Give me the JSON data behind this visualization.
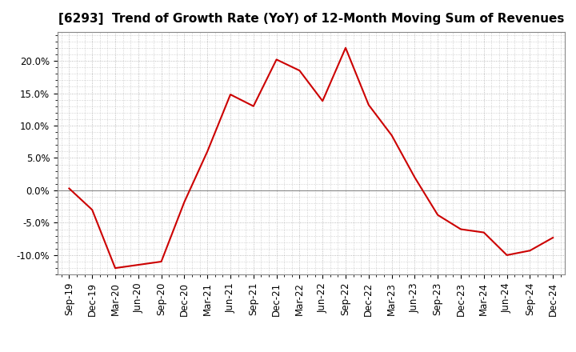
{
  "title": "[6293]  Trend of Growth Rate (YoY) of 12-Month Moving Sum of Revenues",
  "line_color": "#CC0000",
  "background_color": "#FFFFFF",
  "grid_color": "#AAAAAA",
  "zero_line_color": "#888888",
  "ylim": [
    -0.13,
    0.245
  ],
  "yticks": [
    -0.1,
    -0.05,
    0.0,
    0.05,
    0.1,
    0.15,
    0.2
  ],
  "ytick_labels": [
    "-10.0%",
    "-5.0%",
    "0.0%",
    "5.0%",
    "10.0%",
    "15.0%",
    "20.0%"
  ],
  "x_labels": [
    "Sep-19",
    "Dec-19",
    "Mar-20",
    "Jun-20",
    "Sep-20",
    "Dec-20",
    "Mar-21",
    "Jun-21",
    "Sep-21",
    "Dec-21",
    "Mar-22",
    "Jun-22",
    "Sep-22",
    "Dec-22",
    "Mar-23",
    "Jun-23",
    "Sep-23",
    "Dec-23",
    "Mar-24",
    "Jun-24",
    "Sep-24",
    "Dec-24"
  ],
  "data": [
    [
      "Sep-19",
      0.003
    ],
    [
      "Dec-19",
      -0.03
    ],
    [
      "Mar-20",
      -0.12
    ],
    [
      "Jun-20",
      -0.115
    ],
    [
      "Sep-20",
      -0.11
    ],
    [
      "Dec-20",
      -0.018
    ],
    [
      "Mar-21",
      0.06
    ],
    [
      "Jun-21",
      0.148
    ],
    [
      "Sep-21",
      0.13
    ],
    [
      "Dec-21",
      0.202
    ],
    [
      "Mar-22",
      0.185
    ],
    [
      "Jun-22",
      0.138
    ],
    [
      "Sep-22",
      0.22
    ],
    [
      "Dec-22",
      0.132
    ],
    [
      "Mar-23",
      0.085
    ],
    [
      "Jun-23",
      0.02
    ],
    [
      "Sep-23",
      -0.038
    ],
    [
      "Dec-23",
      -0.06
    ],
    [
      "Mar-24",
      -0.065
    ],
    [
      "Jun-24",
      -0.1
    ],
    [
      "Sep-24",
      -0.093
    ],
    [
      "Dec-24",
      -0.073
    ]
  ],
  "title_fontsize": 11,
  "tick_fontsize": 8.5
}
